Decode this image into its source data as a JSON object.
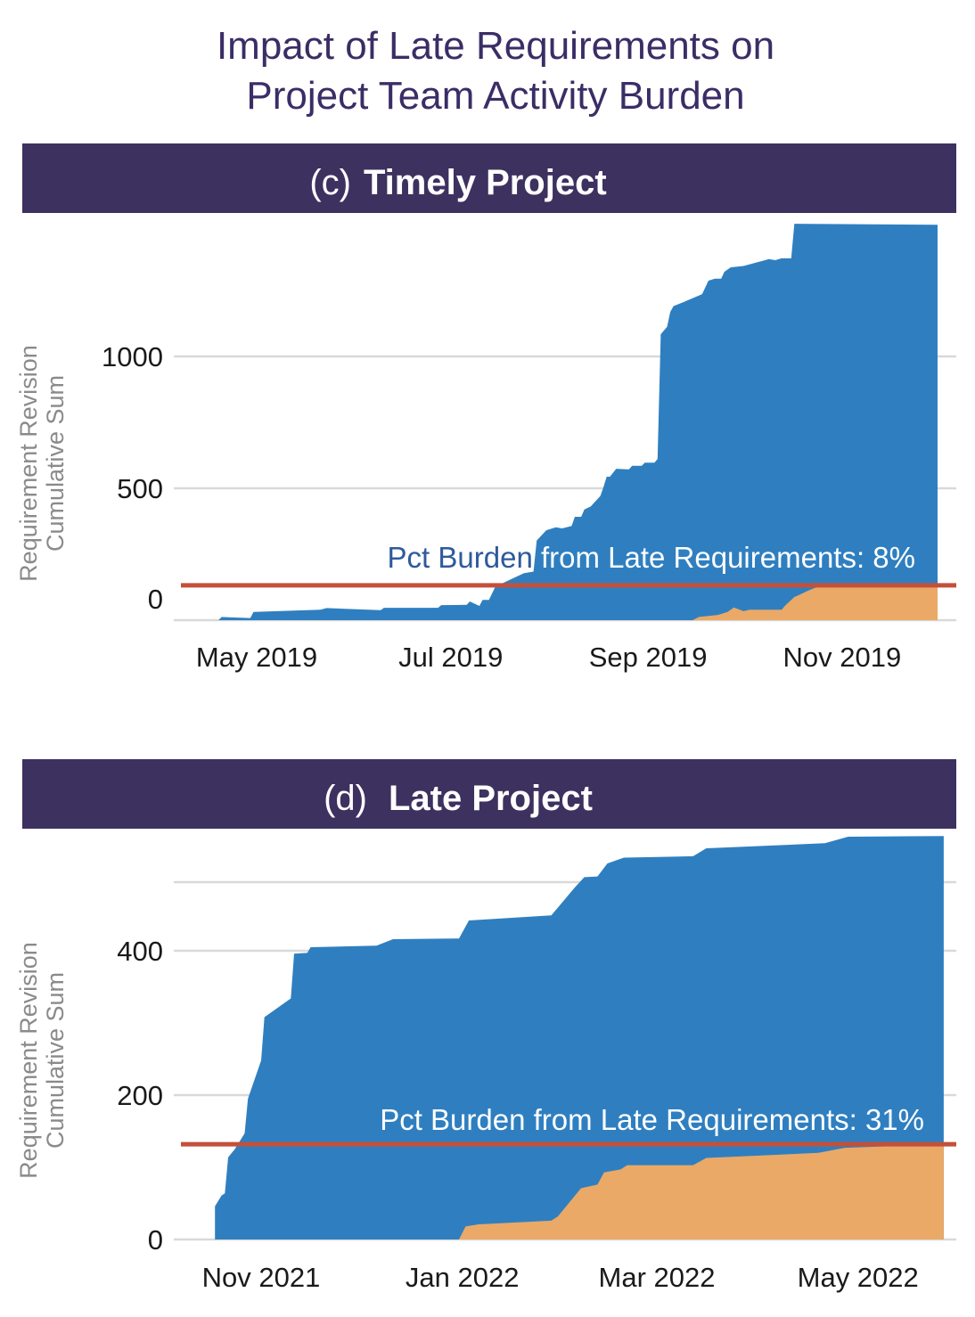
{
  "title": {
    "line1": "Impact of Late Requirements on",
    "line2": "Project Team Activity Burden"
  },
  "colors": {
    "header": "#3d3160",
    "total": "#2f7fc0",
    "late": "#eaa966",
    "burden_line": "#c4503a",
    "annotation": "#2e5a9c",
    "grid": "#d9d9d9"
  },
  "chart_data": [
    {
      "type": "area",
      "panel_letter": "(c)",
      "panel_title": "Timely Project",
      "ylabel_line1": "Requirement  Revision",
      "ylabel_line2": "Cumulative Sum",
      "ylim": [
        0,
        1500
      ],
      "yticks": [
        0,
        500,
        1000
      ],
      "ytick_labels": [
        "0",
        "500",
        "1000"
      ],
      "gridlines": [
        0,
        500,
        1000
      ],
      "xticks": [
        "2019-05-01",
        "2019-07-01",
        "2019-09-01",
        "2019-11-01"
      ],
      "xtick_labels": [
        "May 2019",
        "Jul 2019",
        "Sep 2019",
        "Nov 2019"
      ],
      "annotation": "Pct Burden from Late Requirements: 8%",
      "burden_line_value": 132,
      "series": [
        {
          "key": "total",
          "points": [
            [
              "2019-04-19",
              0
            ],
            [
              "2019-04-20",
              12
            ],
            [
              "2019-04-29",
              8
            ],
            [
              "2019-04-30",
              31
            ],
            [
              "2019-05-21",
              40
            ],
            [
              "2019-05-23",
              46
            ],
            [
              "2019-06-09",
              38
            ],
            [
              "2019-06-10",
              47
            ],
            [
              "2019-06-27",
              47
            ],
            [
              "2019-06-28",
              57
            ],
            [
              "2019-07-06",
              58
            ],
            [
              "2019-07-07",
              71
            ],
            [
              "2019-07-10",
              54
            ],
            [
              "2019-07-11",
              77
            ],
            [
              "2019-07-13",
              77
            ],
            [
              "2019-07-15",
              127
            ],
            [
              "2019-07-19",
              150
            ],
            [
              "2019-07-24",
              178
            ],
            [
              "2019-07-27",
              184
            ],
            [
              "2019-07-28",
              302
            ],
            [
              "2019-07-31",
              341
            ],
            [
              "2019-08-03",
              352
            ],
            [
              "2019-08-05",
              348
            ],
            [
              "2019-08-08",
              357
            ],
            [
              "2019-08-09",
              392
            ],
            [
              "2019-08-11",
              392
            ],
            [
              "2019-08-12",
              420
            ],
            [
              "2019-08-14",
              431
            ],
            [
              "2019-08-17",
              471
            ],
            [
              "2019-08-18",
              504
            ],
            [
              "2019-08-19",
              544
            ],
            [
              "2019-08-20",
              544
            ],
            [
              "2019-08-22",
              574
            ],
            [
              "2019-08-26",
              572
            ],
            [
              "2019-08-27",
              585
            ],
            [
              "2019-08-30",
              585
            ],
            [
              "2019-08-31",
              597
            ],
            [
              "2019-09-03",
              597
            ],
            [
              "2019-09-04",
              611
            ],
            [
              "2019-09-05",
              1084
            ],
            [
              "2019-09-07",
              1112
            ],
            [
              "2019-09-08",
              1169
            ],
            [
              "2019-09-09",
              1191
            ],
            [
              "2019-09-12",
              1205
            ],
            [
              "2019-09-18",
              1236
            ],
            [
              "2019-09-20",
              1287
            ],
            [
              "2019-09-22",
              1295
            ],
            [
              "2019-09-24",
              1295
            ],
            [
              "2019-09-25",
              1321
            ],
            [
              "2019-09-27",
              1338
            ],
            [
              "2019-10-01",
              1343
            ],
            [
              "2019-10-07",
              1362
            ],
            [
              "2019-10-09",
              1369
            ],
            [
              "2019-10-11",
              1365
            ],
            [
              "2019-10-13",
              1372
            ],
            [
              "2019-10-16",
              1372
            ],
            [
              "2019-10-17",
              1503
            ],
            [
              "2019-12-01",
              1499
            ]
          ]
        },
        {
          "key": "late",
          "points": [
            [
              "2019-09-15",
              0
            ],
            [
              "2019-09-17",
              12
            ],
            [
              "2019-09-23",
              20
            ],
            [
              "2019-09-26",
              31
            ],
            [
              "2019-09-28",
              48
            ],
            [
              "2019-10-01",
              34
            ],
            [
              "2019-10-03",
              40
            ],
            [
              "2019-10-13",
              40
            ],
            [
              "2019-10-14",
              54
            ],
            [
              "2019-10-17",
              88
            ],
            [
              "2019-10-18",
              93
            ],
            [
              "2019-10-21",
              110
            ],
            [
              "2019-10-24",
              125
            ],
            [
              "2019-12-01",
              128
            ]
          ]
        }
      ]
    },
    {
      "type": "area",
      "panel_letter": "(d)",
      "panel_title": "Late Project",
      "ylabel_line1": "Requirement  Revision",
      "ylabel_line2": "Cumulative Sum",
      "ylim": [
        0,
        560
      ],
      "yticks": [
        0,
        200,
        400
      ],
      "ytick_labels": [
        "0",
        "200",
        "400"
      ],
      "gridlines": [
        0,
        200,
        400,
        495
      ],
      "xticks": [
        "2021-11-01",
        "2022-01-01",
        "2022-03-01",
        "2022-05-01"
      ],
      "xtick_labels": [
        "Nov 2021",
        "Jan 2022",
        "Mar 2022",
        "May 2022"
      ],
      "annotation": "Pct Burden from Late Requirements: 31%",
      "burden_line_value": 132,
      "series": [
        {
          "key": "total",
          "points": [
            [
              "2021-10-18",
              0
            ],
            [
              "2021-10-18",
              46
            ],
            [
              "2021-10-20",
              61
            ],
            [
              "2021-10-21",
              64
            ],
            [
              "2021-10-22",
              114
            ],
            [
              "2021-10-24",
              125
            ],
            [
              "2021-10-27",
              147
            ],
            [
              "2021-10-28",
              195
            ],
            [
              "2021-11-01",
              248
            ],
            [
              "2021-11-02",
              308
            ],
            [
              "2021-11-10",
              334
            ],
            [
              "2021-11-11",
              396
            ],
            [
              "2021-11-15",
              397
            ],
            [
              "2021-11-16",
              405
            ],
            [
              "2021-12-06",
              407
            ],
            [
              "2021-12-11",
              416
            ],
            [
              "2021-12-31",
              417
            ],
            [
              "2022-01-03",
              442
            ],
            [
              "2022-01-28",
              449
            ],
            [
              "2022-02-04",
              487
            ],
            [
              "2022-02-07",
              502
            ],
            [
              "2022-02-11",
              503
            ],
            [
              "2022-02-14",
              521
            ],
            [
              "2022-02-19",
              529
            ],
            [
              "2022-03-12",
              531
            ],
            [
              "2022-03-16",
              542
            ],
            [
              "2022-04-21",
              549
            ],
            [
              "2022-04-28",
              558
            ],
            [
              "2022-05-27",
              559
            ]
          ]
        },
        {
          "key": "late",
          "points": [
            [
              "2021-12-31",
              0
            ],
            [
              "2022-01-02",
              18
            ],
            [
              "2022-01-06",
              21
            ],
            [
              "2022-01-28",
              26
            ],
            [
              "2022-01-30",
              32
            ],
            [
              "2022-02-06",
              71
            ],
            [
              "2022-02-11",
              76
            ],
            [
              "2022-02-13",
              93
            ],
            [
              "2022-02-18",
              97
            ],
            [
              "2022-02-20",
              103
            ],
            [
              "2022-03-12",
              103
            ],
            [
              "2022-03-16",
              113
            ],
            [
              "2022-04-19",
              120
            ],
            [
              "2022-04-27",
              127
            ],
            [
              "2022-05-27",
              132
            ]
          ]
        }
      ]
    }
  ]
}
